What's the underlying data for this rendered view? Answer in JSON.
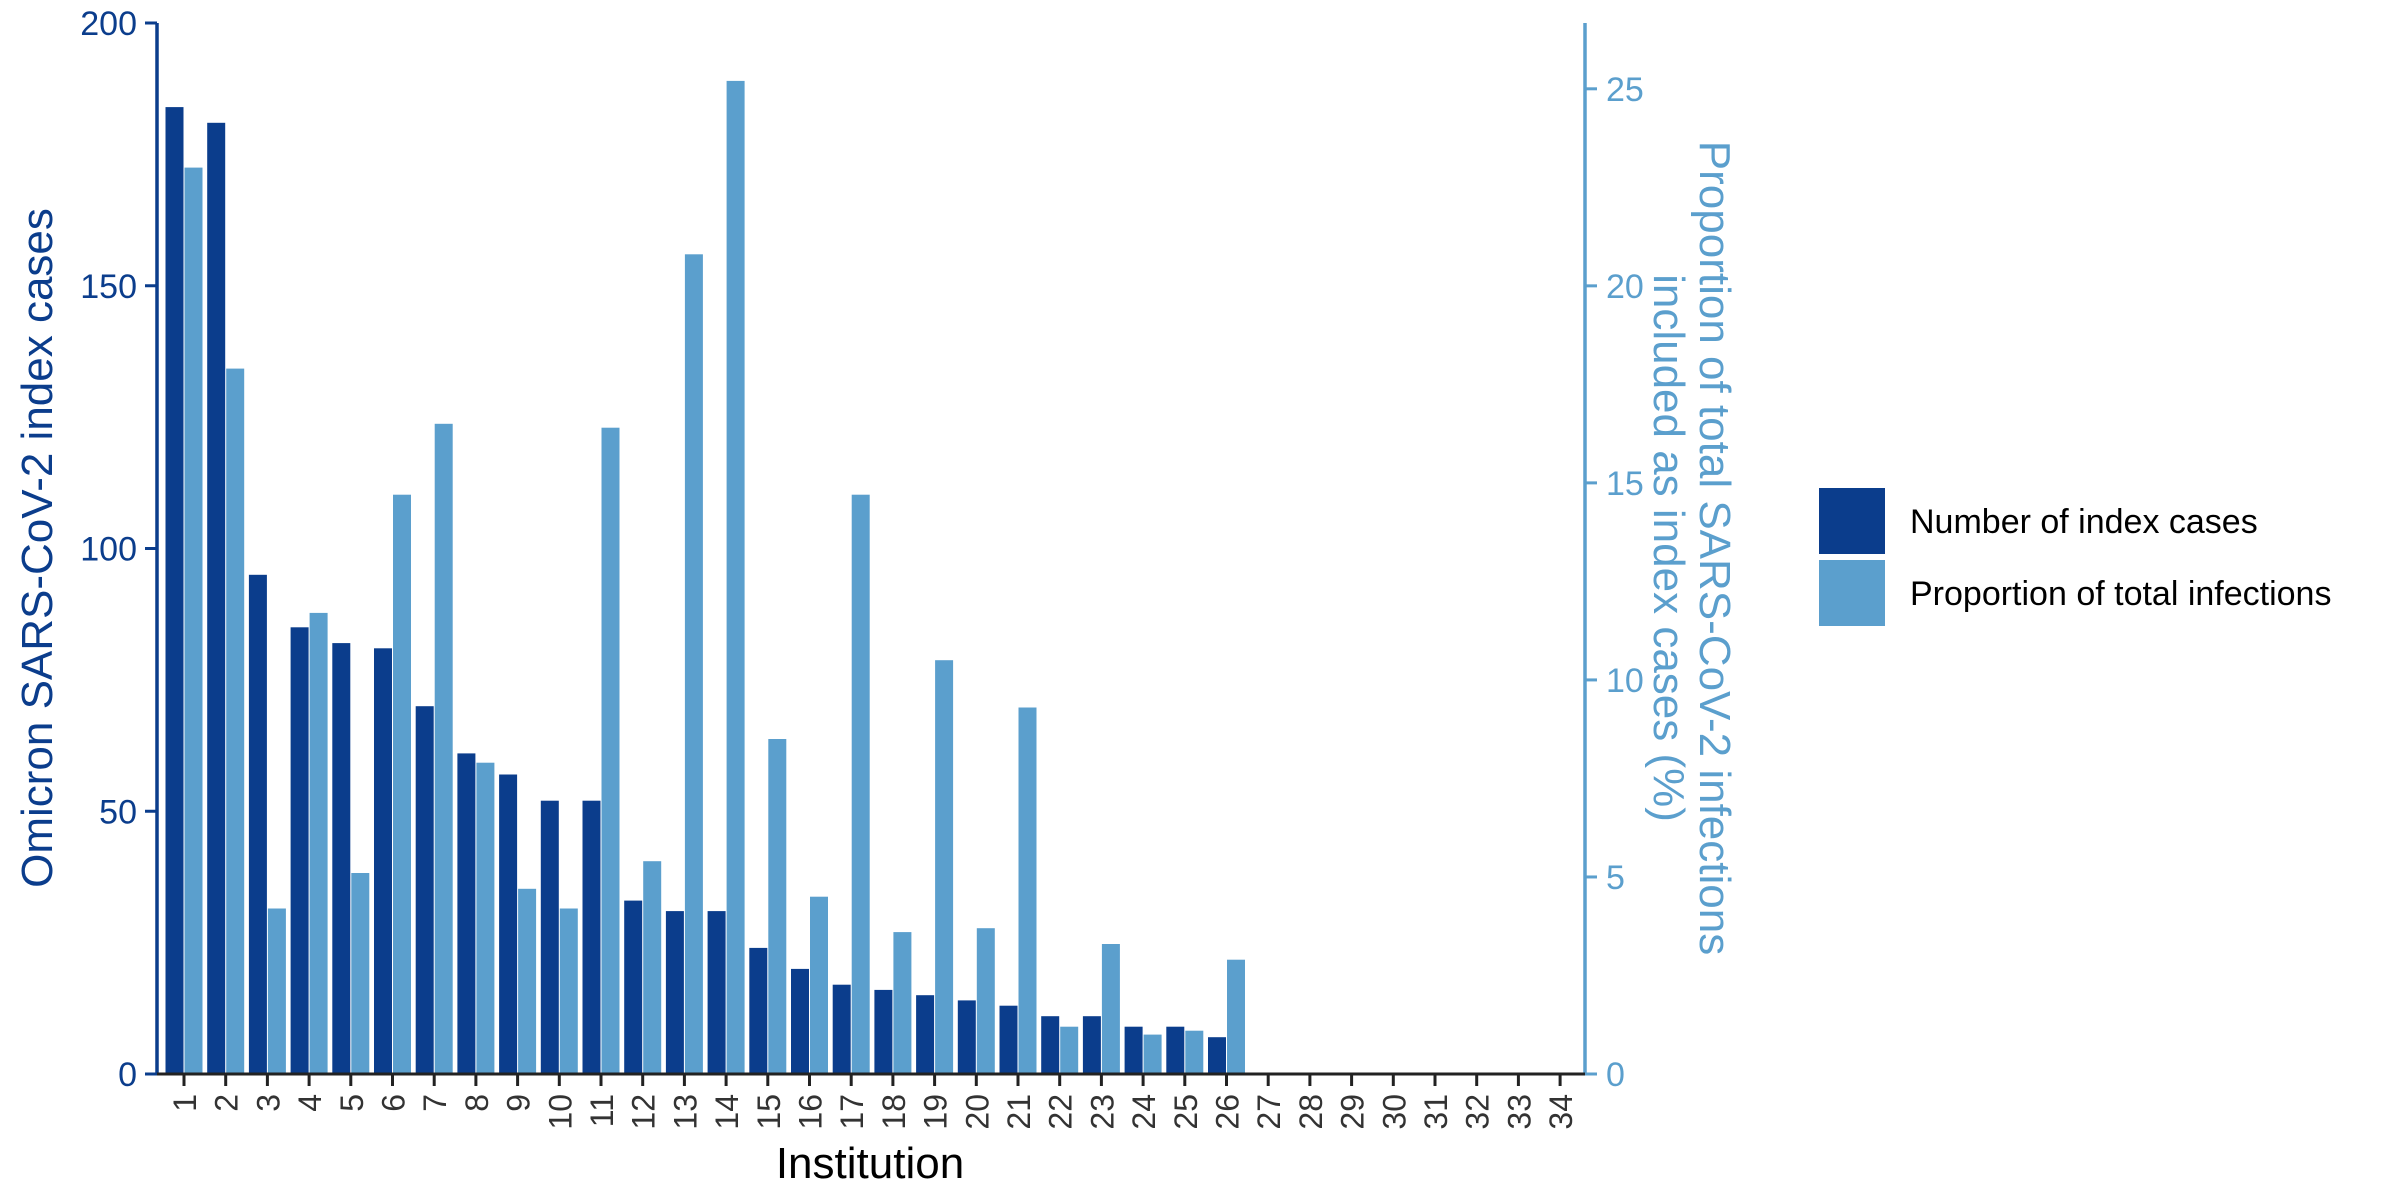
{
  "chart_data": {
    "type": "bar",
    "xlabel": "Institution",
    "ylabel_left": "Omicron SARS-CoV-2 index cases",
    "ylabel_right_lines": [
      "Proportion of total SARS-CoV-2 infections",
      "included as index cases (%)"
    ],
    "ylim_left": [
      0,
      200
    ],
    "ylim_right": [
      0,
      26.67
    ],
    "yticks_left": [
      0,
      50,
      100,
      150,
      200
    ],
    "yticks_right": [
      0,
      5,
      10,
      15,
      20,
      25
    ],
    "categories": [
      "1",
      "2",
      "3",
      "4",
      "5",
      "6",
      "7",
      "8",
      "9",
      "10",
      "11",
      "12",
      "13",
      "14",
      "15",
      "16",
      "17",
      "18",
      "19",
      "20",
      "21",
      "22",
      "23",
      "24",
      "25",
      "26",
      "27",
      "28",
      "29",
      "30",
      "31",
      "32",
      "33",
      "34"
    ],
    "series": [
      {
        "name": "Number of index cases",
        "axis": "left",
        "color": "#0b3d8c",
        "values": [
          184,
          181,
          95,
          85,
          82,
          81,
          70,
          61,
          57,
          52,
          52,
          33,
          31,
          31,
          24,
          20,
          17,
          16,
          15,
          14,
          13,
          11,
          11,
          9,
          9,
          7,
          0,
          0,
          0,
          0,
          0,
          0,
          0,
          0
        ]
      },
      {
        "name": "Proportion of total infections",
        "axis": "right",
        "color": "#5b9fcd",
        "values": [
          23.0,
          17.9,
          4.2,
          11.7,
          5.1,
          14.7,
          16.5,
          7.9,
          4.7,
          4.2,
          16.4,
          5.4,
          20.8,
          25.2,
          8.5,
          4.5,
          14.7,
          3.6,
          10.5,
          3.7,
          9.3,
          1.2,
          3.3,
          1.0,
          1.1,
          2.9,
          0,
          0,
          0,
          0,
          0,
          0,
          0,
          0
        ]
      }
    ],
    "legend_position": "right",
    "grid": false
  }
}
